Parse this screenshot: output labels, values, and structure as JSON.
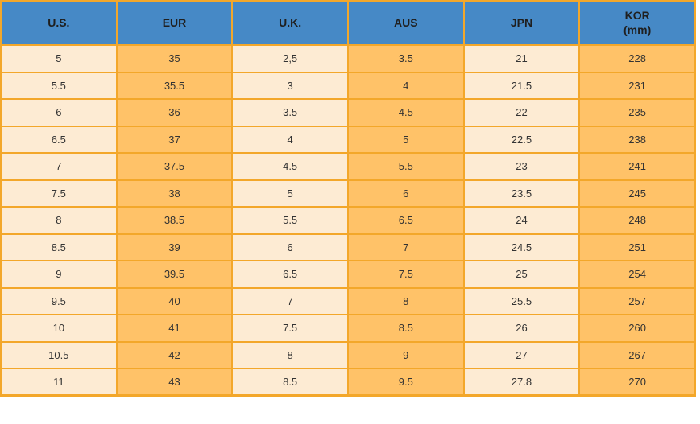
{
  "table": {
    "columns": [
      {
        "label": "U.S.",
        "sublabel": ""
      },
      {
        "label": "EUR",
        "sublabel": ""
      },
      {
        "label": "U.K.",
        "sublabel": ""
      },
      {
        "label": "AUS",
        "sublabel": ""
      },
      {
        "label": "JPN",
        "sublabel": ""
      },
      {
        "label": "KOR",
        "sublabel": "(mm)"
      }
    ],
    "rows": [
      [
        "5",
        "35",
        "2,5",
        "3.5",
        "21",
        "228"
      ],
      [
        "5.5",
        "35.5",
        "3",
        "4",
        "21.5",
        "231"
      ],
      [
        "6",
        "36",
        "3.5",
        "4.5",
        "22",
        "235"
      ],
      [
        "6.5",
        "37",
        "4",
        "5",
        "22.5",
        "238"
      ],
      [
        "7",
        "37.5",
        "4.5",
        "5.5",
        "23",
        "241"
      ],
      [
        "7.5",
        "38",
        "5",
        "6",
        "23.5",
        "245"
      ],
      [
        "8",
        "38.5",
        "5.5",
        "6.5",
        "24",
        "248"
      ],
      [
        "8.5",
        "39",
        "6",
        "7",
        "24.5",
        "251"
      ],
      [
        "9",
        "39.5",
        "6.5",
        "7.5",
        "25",
        "254"
      ],
      [
        "9.5",
        "40",
        "7",
        "8",
        "25.5",
        "257"
      ],
      [
        "10",
        "41",
        "7.5",
        "8.5",
        "26",
        "260"
      ],
      [
        "10.5",
        "42",
        "8",
        "9",
        "27",
        "267"
      ],
      [
        "11",
        "43",
        "8.5",
        "9.5",
        "27.8",
        "270"
      ]
    ]
  },
  "colors": {
    "header_bg": "#4689C6",
    "cream_cell": "#FDEBD3",
    "orange_cell": "#FFC268",
    "border": "#F3A72A",
    "header_text": "#1F1F1F",
    "cell_text": "#333333",
    "page_bg": "#FFFFFF"
  },
  "chart_data": {
    "type": "table",
    "title": "Shoe size conversion table",
    "columns": [
      "U.S.",
      "EUR",
      "U.K.",
      "AUS",
      "JPN",
      "KOR (mm)"
    ],
    "rows": [
      [
        "5",
        "35",
        "2,5",
        "3.5",
        "21",
        "228"
      ],
      [
        "5.5",
        "35.5",
        "3",
        "4",
        "21.5",
        "231"
      ],
      [
        "6",
        "36",
        "3.5",
        "4.5",
        "22",
        "235"
      ],
      [
        "6.5",
        "37",
        "4",
        "5",
        "22.5",
        "238"
      ],
      [
        "7",
        "37.5",
        "4.5",
        "5.5",
        "23",
        "241"
      ],
      [
        "7.5",
        "38",
        "5",
        "6",
        "23.5",
        "245"
      ],
      [
        "8",
        "38.5",
        "5.5",
        "6.5",
        "24",
        "248"
      ],
      [
        "8.5",
        "39",
        "6",
        "7",
        "24.5",
        "251"
      ],
      [
        "9",
        "39.5",
        "6.5",
        "7.5",
        "25",
        "254"
      ],
      [
        "9.5",
        "40",
        "7",
        "8",
        "25.5",
        "257"
      ],
      [
        "10",
        "41",
        "7.5",
        "8.5",
        "26",
        "260"
      ],
      [
        "10.5",
        "42",
        "8",
        "9",
        "27",
        "267"
      ],
      [
        "11",
        "43",
        "8.5",
        "9.5",
        "27.8",
        "270"
      ]
    ],
    "layout": {
      "header_fill": "#4689C6",
      "odd_column_fill": "#FDEBD3",
      "even_column_fill": "#FFC268",
      "grid": "on",
      "grid_color": "#F3A72A"
    }
  }
}
